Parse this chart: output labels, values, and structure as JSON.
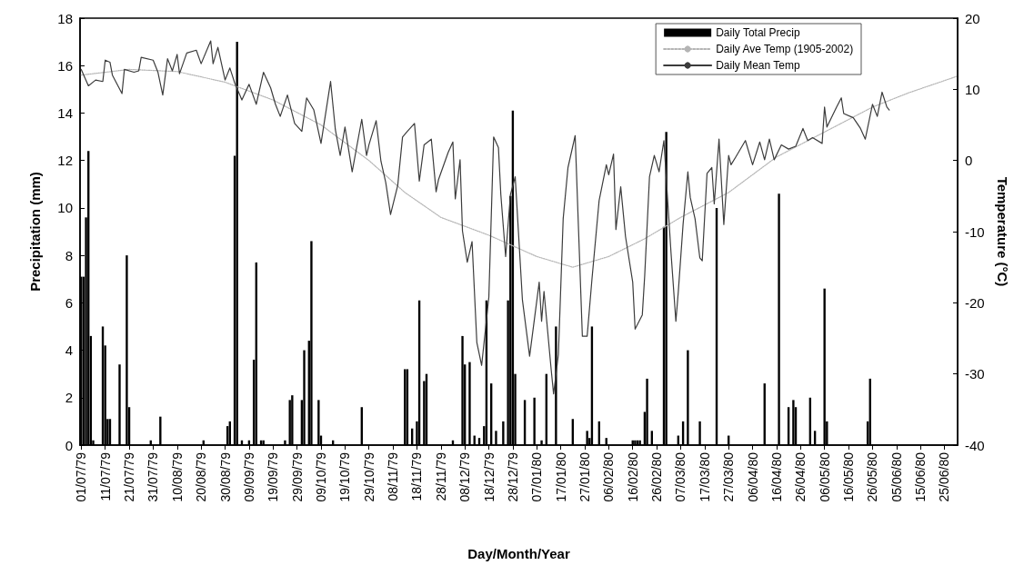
{
  "chart_data": {
    "type": "bar",
    "xlabel": "Day/Month/Year",
    "ylabel": "Precipitation (mm)",
    "y2label": "Temperature (°C)",
    "xlim": [
      "1979-06-30T12:00",
      "1980-06-30T12:00"
    ],
    "xticks": [
      {
        "value": "1979-07-01",
        "label": "01/07/79"
      },
      {
        "value": "1979-07-11",
        "label": "11/07/79"
      },
      {
        "value": "1979-07-21",
        "label": "21/07/79"
      },
      {
        "value": "1979-07-31",
        "label": "31/07/79"
      },
      {
        "value": "1979-08-10",
        "label": "10/08/79"
      },
      {
        "value": "1979-08-20",
        "label": "20/08/79"
      },
      {
        "value": "1979-08-30",
        "label": "30/08/79"
      },
      {
        "value": "1979-09-09",
        "label": "09/09/79"
      },
      {
        "value": "1979-09-19",
        "label": "19/09/79"
      },
      {
        "value": "1979-09-29",
        "label": "29/09/79"
      },
      {
        "value": "1979-10-09",
        "label": "09/10/79"
      },
      {
        "value": "1979-10-19",
        "label": "19/10/79"
      },
      {
        "value": "1979-10-29",
        "label": "29/10/79"
      },
      {
        "value": "1979-11-08",
        "label": "08/11/79"
      },
      {
        "value": "1979-11-18",
        "label": "18/11/79"
      },
      {
        "value": "1979-11-28",
        "label": "28/11/79"
      },
      {
        "value": "1979-12-08",
        "label": "08/12/79"
      },
      {
        "value": "1979-12-18",
        "label": "18/12/79"
      },
      {
        "value": "1979-12-28",
        "label": "28/12/79"
      },
      {
        "value": "1980-01-07",
        "label": "07/01/80"
      },
      {
        "value": "1980-01-17",
        "label": "17/01/80"
      },
      {
        "value": "1980-01-27",
        "label": "27/01/80"
      },
      {
        "value": "1980-02-06",
        "label": "06/02/80"
      },
      {
        "value": "1980-02-16",
        "label": "16/02/80"
      },
      {
        "value": "1980-02-26",
        "label": "26/02/80"
      },
      {
        "value": "1980-03-07",
        "label": "07/03/80"
      },
      {
        "value": "1980-03-17",
        "label": "17/03/80"
      },
      {
        "value": "1980-03-27",
        "label": "27/03/80"
      },
      {
        "value": "1980-04-06",
        "label": "06/04/80"
      },
      {
        "value": "1980-04-16",
        "label": "16/04/80"
      },
      {
        "value": "1980-04-26",
        "label": "26/04/80"
      },
      {
        "value": "1980-05-06",
        "label": "06/05/80"
      },
      {
        "value": "1980-05-16",
        "label": "16/05/80"
      },
      {
        "value": "1980-05-26",
        "label": "26/05/80"
      },
      {
        "value": "1980-06-05",
        "label": "05/06/80"
      },
      {
        "value": "1980-06-15",
        "label": "15/06/80"
      },
      {
        "value": "1980-06-25",
        "label": "25/06/80"
      }
    ],
    "ylim": [
      0,
      18
    ],
    "yticks": [
      0,
      2,
      4,
      6,
      8,
      10,
      12,
      14,
      16,
      18
    ],
    "y2lim": [
      -40,
      20
    ],
    "y2ticks": [
      -40,
      -30,
      -20,
      -10,
      0,
      10,
      20
    ],
    "grid": false,
    "legend": "top right",
    "marker": "none",
    "series": [
      {
        "name": "Daily Total Precip",
        "color": "#000000",
        "x": [
          "1979-07-01",
          "1979-07-02",
          "1979-07-03",
          "1979-07-04",
          "1979-07-05",
          "1979-07-06",
          "1979-07-10",
          "1979-07-11",
          "1979-07-12",
          "1979-07-13",
          "1979-07-17",
          "1979-07-20",
          "1979-07-21",
          "1979-07-30",
          "1979-08-03",
          "1979-08-21",
          "1979-08-31",
          "1979-09-01",
          "1979-09-03",
          "1979-09-04",
          "1979-09-06",
          "1979-09-09",
          "1979-09-11",
          "1979-09-12",
          "1979-09-14",
          "1979-09-15",
          "1979-09-24",
          "1979-09-26",
          "1979-09-27",
          "1979-10-01",
          "1979-10-02",
          "1979-10-04",
          "1979-10-05",
          "1979-10-08",
          "1979-10-09",
          "1979-10-14",
          "1979-10-26",
          "1979-11-13",
          "1979-11-14",
          "1979-11-16",
          "1979-11-18",
          "1979-11-19",
          "1979-11-21",
          "1979-11-22",
          "1979-12-03",
          "1979-12-07",
          "1979-12-08",
          "1979-12-10",
          "1979-12-12",
          "1979-12-14",
          "1979-12-16",
          "1979-12-17",
          "1979-12-19",
          "1979-12-21",
          "1979-12-24",
          "1979-12-26",
          "1979-12-27",
          "1979-12-28",
          "1979-12-29",
          "1980-01-02",
          "1980-01-06",
          "1980-01-09",
          "1980-01-11",
          "1980-01-15",
          "1980-01-22",
          "1980-01-28",
          "1980-01-29",
          "1980-01-30",
          "1980-02-02",
          "1980-02-05",
          "1980-02-16",
          "1980-02-17",
          "1980-02-18",
          "1980-02-19",
          "1980-02-21",
          "1980-02-22",
          "1980-02-24",
          "1980-02-29",
          "1980-03-01",
          "1980-03-06",
          "1980-03-08",
          "1980-03-10",
          "1980-03-15",
          "1980-03-22",
          "1980-03-27",
          "1980-04-11",
          "1980-04-17",
          "1980-04-21",
          "1980-04-23",
          "1980-04-24",
          "1980-04-30",
          "1980-05-02",
          "1980-05-06",
          "1980-05-07",
          "1980-05-24",
          "1980-05-25"
        ],
        "values": [
          7.1,
          7.1,
          9.6,
          12.4,
          4.6,
          0.2,
          5.0,
          4.2,
          1.1,
          1.1,
          3.4,
          8.0,
          1.6,
          0.2,
          1.2,
          0.2,
          0.8,
          1.0,
          12.2,
          17.0,
          0.2,
          0.2,
          3.6,
          7.7,
          0.2,
          0.2,
          0.2,
          1.9,
          2.1,
          1.9,
          4.0,
          4.4,
          8.6,
          1.9,
          0.4,
          0.2,
          1.6,
          3.2,
          3.2,
          0.7,
          1.0,
          6.1,
          2.7,
          3.0,
          0.2,
          4.6,
          3.4,
          3.5,
          0.4,
          0.3,
          0.8,
          6.1,
          2.6,
          0.6,
          1.0,
          6.1,
          10.5,
          14.1,
          3.0,
          1.9,
          2.0,
          0.2,
          3.0,
          5.0,
          1.1,
          0.6,
          0.3,
          5.0,
          1.0,
          0.3,
          0.2,
          0.2,
          0.2,
          0.2,
          1.4,
          2.8,
          0.6,
          9.2,
          13.2,
          0.4,
          1.0,
          4.0,
          1.0,
          10.0,
          0.4,
          2.6,
          10.6,
          1.6,
          1.9,
          1.6,
          2.0,
          0.6,
          6.6,
          1.0,
          1.0,
          2.8
        ]
      },
      {
        "name": "Daily Ave Temp (1905-2002)",
        "type": "line",
        "axis": "y2",
        "color": "#b4b4b4",
        "line_style": "dotted",
        "x": [
          "1979-07-01",
          "1979-07-21",
          "1979-08-10",
          "1979-08-30",
          "1979-09-19",
          "1979-10-09",
          "1979-10-29",
          "1979-11-13",
          "1979-11-28",
          "1979-12-18",
          "1980-01-07",
          "1980-01-22",
          "1980-02-06",
          "1980-02-21",
          "1980-03-07",
          "1980-03-27",
          "1980-04-16",
          "1980-05-06",
          "1980-05-26",
          "1980-06-10",
          "1980-06-30"
        ],
        "values": [
          12,
          12.8,
          12.5,
          11,
          8.5,
          5,
          0,
          -4.5,
          -8,
          -10.5,
          -13.5,
          -15,
          -13.5,
          -11,
          -8,
          -4.5,
          0.5,
          4,
          7.5,
          9.5,
          11.8
        ]
      },
      {
        "name": "Daily Mean Temp",
        "type": "line",
        "axis": "y2",
        "color": "#3c3c3c",
        "line_style": "solid",
        "x": [
          "1979-07-01",
          "1979-07-04",
          "1979-07-07",
          "1979-07-10",
          "1979-07-11",
          "1979-07-13",
          "1979-07-14",
          "1979-07-18",
          "1979-07-19",
          "1979-07-23",
          "1979-07-25",
          "1979-07-26",
          "1979-07-31",
          "1979-08-02",
          "1979-08-04",
          "1979-08-06",
          "1979-08-08",
          "1979-08-10",
          "1979-08-11",
          "1979-08-14",
          "1979-08-18",
          "1979-08-20",
          "1979-08-24",
          "1979-08-25",
          "1979-08-27",
          "1979-08-30",
          "1979-09-01",
          "1979-09-03",
          "1979-09-06",
          "1979-09-09",
          "1979-09-12",
          "1979-09-15",
          "1979-09-18",
          "1979-09-20",
          "1979-09-22",
          "1979-09-25",
          "1979-09-28",
          "1979-10-01",
          "1979-10-03",
          "1979-10-06",
          "1979-10-09",
          "1979-10-13",
          "1979-10-15",
          "1979-10-17",
          "1979-10-19",
          "1979-10-22",
          "1979-10-26",
          "1979-10-28",
          "1979-10-29",
          "1979-11-01",
          "1979-11-03",
          "1979-11-05",
          "1979-11-07",
          "1979-11-10",
          "1979-11-12",
          "1979-11-14",
          "1979-11-17",
          "1979-11-19",
          "1979-11-21",
          "1979-11-24",
          "1979-11-26",
          "1979-11-27",
          "1979-12-01",
          "1979-12-03",
          "1979-12-04",
          "1979-12-06",
          "1979-12-07",
          "1979-12-09",
          "1979-12-11",
          "1979-12-13",
          "1979-12-15",
          "1979-12-18",
          "1979-12-20",
          "1979-12-22",
          "1979-12-23",
          "1979-12-25",
          "1979-12-27",
          "1979-12-29",
          "1980-01-01",
          "1980-01-04",
          "1980-01-08",
          "1980-01-09",
          "1980-01-10",
          "1980-01-13",
          "1980-01-14",
          "1980-01-16",
          "1980-01-18",
          "1980-01-20",
          "1980-01-23",
          "1980-01-26",
          "1980-01-28",
          "1980-01-30",
          "1980-02-02",
          "1980-02-05",
          "1980-02-06",
          "1980-02-08",
          "1980-02-09",
          "1980-02-11",
          "1980-02-13",
          "1980-02-16",
          "1980-02-17",
          "1980-02-20",
          "1980-02-21",
          "1980-02-23",
          "1980-02-25",
          "1980-02-27",
          "1980-02-29",
          "1980-03-03",
          "1980-03-05",
          "1980-03-06",
          "1980-03-08",
          "1980-03-10",
          "1980-03-11",
          "1980-03-13",
          "1980-03-15",
          "1980-03-16",
          "1980-03-18",
          "1980-03-20",
          "1980-03-21",
          "1980-03-23",
          "1980-03-25",
          "1980-03-27",
          "1980-03-28",
          "1980-03-30",
          "1980-04-03",
          "1980-04-06",
          "1980-04-09",
          "1980-04-11",
          "1980-04-13",
          "1980-04-15",
          "1980-04-18",
          "1980-04-21",
          "1980-04-24",
          "1980-04-27",
          "1980-04-29",
          "1980-05-01",
          "1980-05-05",
          "1980-05-06",
          "1980-05-07",
          "1980-05-11",
          "1980-05-13",
          "1980-05-14",
          "1980-05-18",
          "1980-05-21",
          "1980-05-23",
          "1980-05-26",
          "1980-05-28",
          "1980-05-30",
          "1980-06-01",
          "1980-06-02"
        ],
        "values": [
          12.8,
          10.5,
          11.3,
          11.1,
          14.1,
          13.8,
          12.0,
          9.4,
          12.8,
          12.4,
          12.6,
          14.5,
          14.1,
          12.4,
          9.2,
          14.3,
          12.6,
          14.9,
          12.2,
          15.1,
          15.5,
          13.6,
          16.8,
          13.6,
          15.9,
          11.3,
          13.0,
          10.9,
          8.5,
          10.7,
          7.9,
          12.4,
          10.2,
          7.9,
          6.2,
          9.2,
          5.2,
          4.1,
          8.8,
          7.1,
          2.4,
          11.1,
          4.3,
          0.7,
          4.7,
          -1.6,
          5.8,
          0.7,
          2.2,
          5.6,
          -0.1,
          -3.1,
          -7.6,
          -3.5,
          3.3,
          4.1,
          5.2,
          -2.9,
          2.2,
          3.0,
          -4.4,
          -2.7,
          1.1,
          2.6,
          -5.4,
          0.1,
          -9.9,
          -14.3,
          -11.4,
          -25.6,
          -28.8,
          -19.2,
          3.3,
          1.8,
          -4.8,
          -13.5,
          -4.8,
          -2.3,
          -19.6,
          -27.5,
          -17.1,
          -22.6,
          -18.4,
          -29.4,
          -32.8,
          -27.3,
          -8.2,
          -1.0,
          3.5,
          -24.7,
          -24.7,
          -16.7,
          -5.6,
          -0.6,
          -2.0,
          0.9,
          -9.7,
          -3.7,
          -10.7,
          -17.1,
          -23.7,
          -21.7,
          -16.2,
          -2.3,
          0.7,
          -1.6,
          2.8,
          -13.1,
          -22.6,
          -18.5,
          -9.0,
          -1.6,
          -5.2,
          -8.2,
          -13.7,
          -14.1,
          -1.8,
          -1.0,
          -6.1,
          3.0,
          -9.0,
          0.7,
          -0.6,
          0.5,
          2.8,
          -0.6,
          2.6,
          0.1,
          3.0,
          0.1,
          2.2,
          1.6,
          2.0,
          4.5,
          2.8,
          3.2,
          2.4,
          7.5,
          4.7,
          7.5,
          8.8,
          6.6,
          6.0,
          4.5,
          3.0,
          7.9,
          6.2,
          9.6,
          7.5,
          7.1
        ]
      }
    ]
  }
}
